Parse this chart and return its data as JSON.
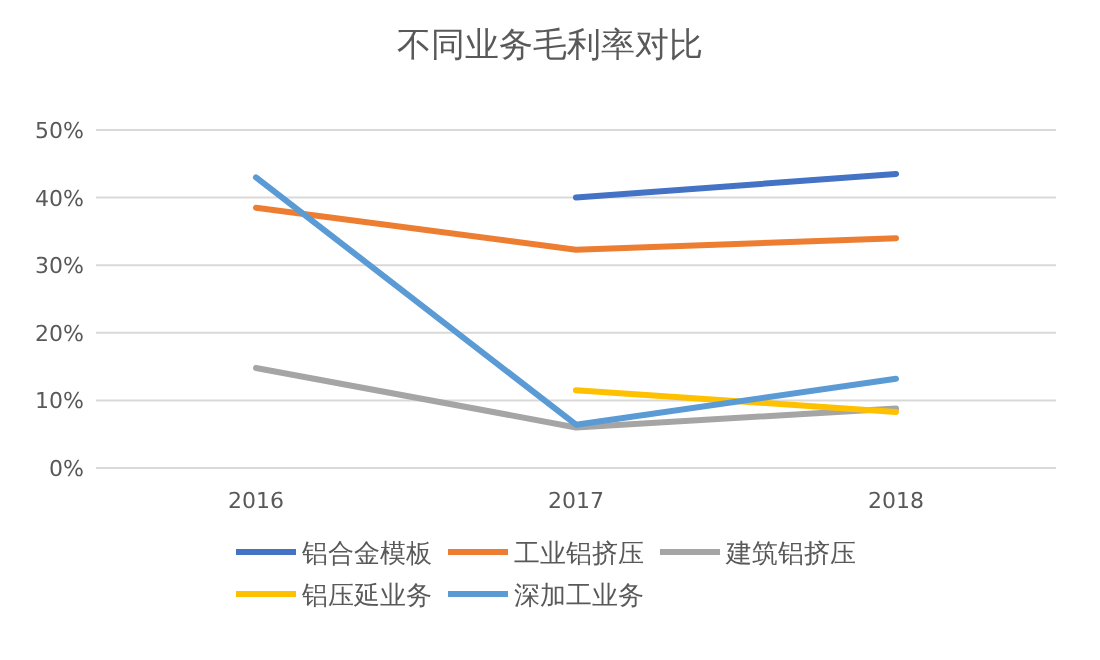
{
  "chart_data": {
    "type": "line",
    "title": "不同业务毛利率对比",
    "categories": [
      "2016",
      "2017",
      "2018"
    ],
    "series": [
      {
        "name": "铝合金模板",
        "color": "#4472c4",
        "values": [
          null,
          40,
          43.5
        ]
      },
      {
        "name": "工业铝挤压",
        "color": "#ed7d31",
        "values": [
          38.5,
          32.3,
          34
        ]
      },
      {
        "name": "建筑铝挤压",
        "color": "#a5a5a5",
        "values": [
          14.8,
          6,
          8.8
        ]
      },
      {
        "name": "铝压延业务",
        "color": "#ffc000",
        "values": [
          null,
          11.5,
          8.3
        ]
      },
      {
        "name": "深加工业务",
        "color": "#5b9bd5",
        "values": [
          43,
          6.4,
          13.2
        ]
      }
    ],
    "ylim": [
      0,
      50
    ],
    "yticks": [
      {
        "value": 0,
        "label": "0%"
      },
      {
        "value": 10,
        "label": "10%"
      },
      {
        "value": 20,
        "label": "20%"
      },
      {
        "value": 30,
        "label": "30%"
      },
      {
        "value": 40,
        "label": "40%"
      },
      {
        "value": 50,
        "label": "50%"
      }
    ],
    "grid": "y",
    "legend": "bottom",
    "marker": "none",
    "line_style": "solid"
  }
}
